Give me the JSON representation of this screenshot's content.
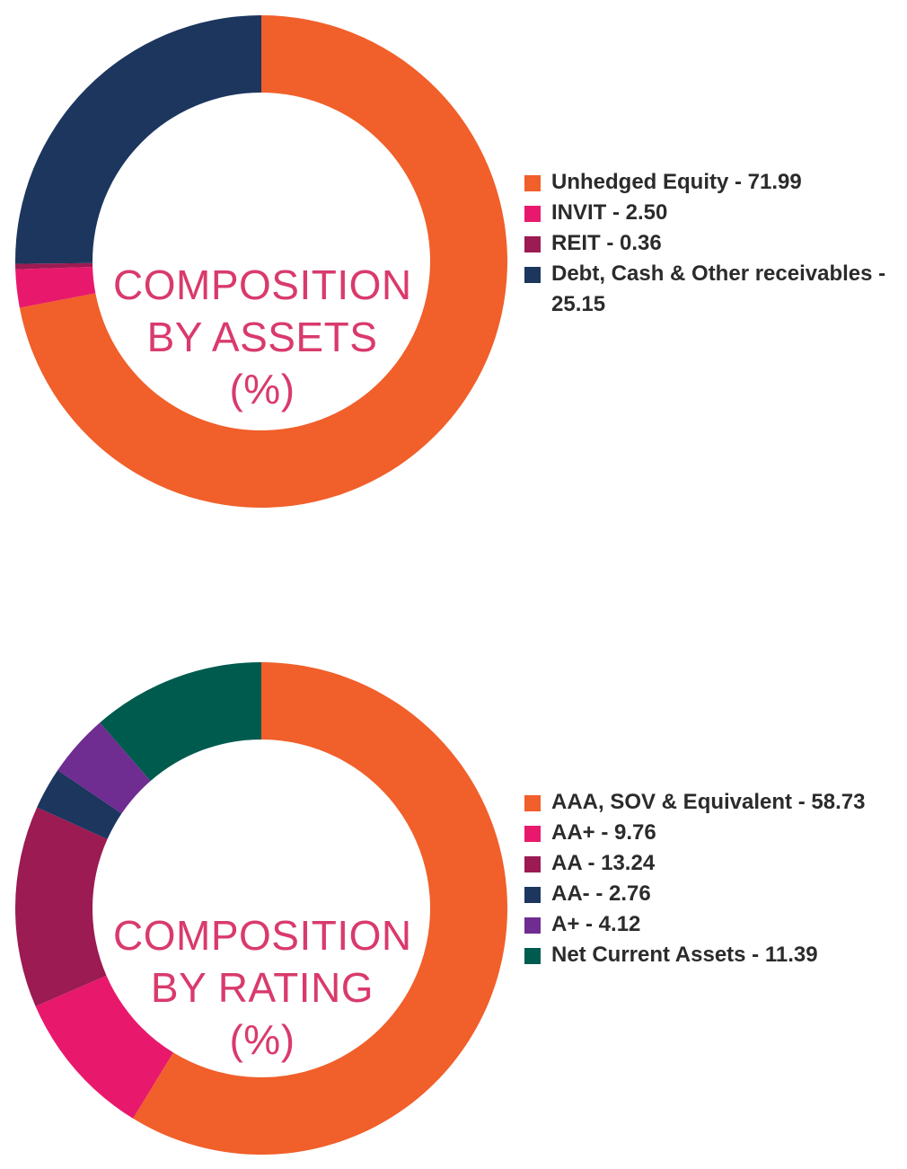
{
  "chart_data": [
    {
      "type": "pie",
      "donut": true,
      "center_label": [
        "COMPOSITION",
        "BY ASSETS",
        "(%)"
      ],
      "legend_position": "right",
      "slices": [
        {
          "label": "Unhedged Equity - 71.99",
          "value": 71.99,
          "color": "#f15f2a"
        },
        {
          "label": "INVIT - 2.50",
          "value": 2.5,
          "color": "#e8196c"
        },
        {
          "label": "REIT - 0.36",
          "value": 0.36,
          "color": "#9b1b52"
        },
        {
          "label": "Debt, Cash & Other receivables - 25.15",
          "value": 25.15,
          "color": "#1c365e"
        }
      ]
    },
    {
      "type": "pie",
      "donut": true,
      "center_label": [
        "COMPOSITION",
        "BY RATING",
        "(%)"
      ],
      "legend_position": "right",
      "slices": [
        {
          "label": "AAA, SOV & Equivalent - 58.73",
          "value": 58.73,
          "color": "#f15f2a"
        },
        {
          "label": "AA+ - 9.76",
          "value": 9.76,
          "color": "#e8196c"
        },
        {
          "label": "AA - 13.24",
          "value": 13.24,
          "color": "#9b1b52"
        },
        {
          "label": "AA- - 2.76",
          "value": 2.76,
          "color": "#1c365e"
        },
        {
          "label": "A+ - 4.12",
          "value": 4.12,
          "color": "#6f2c91"
        },
        {
          "label": "Net Current Assets - 11.39",
          "value": 11.39,
          "color": "#005b4f"
        }
      ]
    }
  ]
}
